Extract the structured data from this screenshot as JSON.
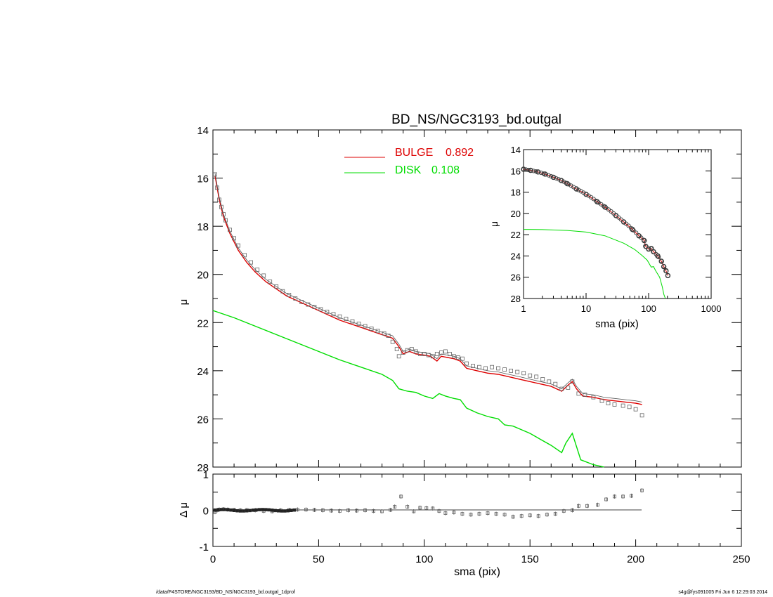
{
  "footer": {
    "path": "/data/P4STORE/NGC3193/BD_NS/NGC3193_bd.outgal_1dprof",
    "stamp": "s4g@fys091005  Fri Jun  6 12:29:03 2014"
  },
  "colors": {
    "bulge": "#dd0000",
    "disk": "#00dd00",
    "data": "#666666",
    "model": "#555555"
  },
  "chart_data": [
    {
      "id": "main",
      "type": "line",
      "title": "BD_NS/NGC3193_bd.outgal",
      "xlabel": "",
      "ylabel": "μ",
      "xlim": [
        0,
        250
      ],
      "ylim": [
        28,
        14
      ],
      "xticks": [
        0,
        50,
        100,
        150,
        200,
        250
      ],
      "yticks": [
        14,
        16,
        18,
        20,
        22,
        24,
        26,
        28
      ],
      "legend": [
        {
          "name": "BULGE",
          "value": "0.892",
          "color": "#dd0000"
        },
        {
          "name": "DISK",
          "value": "0.108",
          "color": "#00dd00"
        }
      ],
      "bulge": [
        [
          1,
          15.9
        ],
        [
          3,
          16.9
        ],
        [
          5,
          17.6
        ],
        [
          8,
          18.3
        ],
        [
          12,
          19.0
        ],
        [
          16,
          19.5
        ],
        [
          20,
          19.9
        ],
        [
          25,
          20.3
        ],
        [
          30,
          20.6
        ],
        [
          35,
          20.9
        ],
        [
          40,
          21.1
        ],
        [
          45,
          21.3
        ],
        [
          50,
          21.5
        ],
        [
          55,
          21.7
        ],
        [
          60,
          21.9
        ],
        [
          65,
          22.05
        ],
        [
          70,
          22.2
        ],
        [
          75,
          22.35
        ],
        [
          80,
          22.5
        ],
        [
          85,
          22.65
        ],
        [
          88,
          23.0
        ],
        [
          90,
          23.3
        ],
        [
          93,
          23.2
        ],
        [
          96,
          23.3
        ],
        [
          100,
          23.35
        ],
        [
          103,
          23.4
        ],
        [
          106,
          23.6
        ],
        [
          108,
          23.4
        ],
        [
          111,
          23.45
        ],
        [
          114,
          23.5
        ],
        [
          117,
          23.6
        ],
        [
          120,
          23.9
        ],
        [
          125,
          24.0
        ],
        [
          130,
          24.1
        ],
        [
          135,
          24.15
        ],
        [
          140,
          24.25
        ],
        [
          145,
          24.35
        ],
        [
          150,
          24.45
        ],
        [
          155,
          24.55
        ],
        [
          160,
          24.65
        ],
        [
          165,
          24.85
        ],
        [
          168,
          24.6
        ],
        [
          170,
          24.45
        ],
        [
          172,
          24.75
        ],
        [
          175,
          25.05
        ],
        [
          180,
          25.1
        ],
        [
          185,
          25.2
        ],
        [
          190,
          25.25
        ],
        [
          195,
          25.3
        ],
        [
          200,
          25.35
        ],
        [
          203,
          25.4
        ]
      ],
      "disk": [
        [
          0,
          21.5
        ],
        [
          10,
          21.8
        ],
        [
          20,
          22.15
        ],
        [
          30,
          22.5
        ],
        [
          40,
          22.85
        ],
        [
          50,
          23.2
        ],
        [
          60,
          23.55
        ],
        [
          70,
          23.85
        ],
        [
          80,
          24.15
        ],
        [
          85,
          24.4
        ],
        [
          88,
          24.75
        ],
        [
          92,
          24.85
        ],
        [
          96,
          24.9
        ],
        [
          100,
          25.05
        ],
        [
          104,
          25.15
        ],
        [
          107,
          24.95
        ],
        [
          110,
          25.05
        ],
        [
          114,
          25.15
        ],
        [
          117,
          25.2
        ],
        [
          120,
          25.55
        ],
        [
          125,
          25.75
        ],
        [
          130,
          25.9
        ],
        [
          135,
          26.0
        ],
        [
          138,
          26.25
        ],
        [
          142,
          26.3
        ],
        [
          146,
          26.45
        ],
        [
          150,
          26.6
        ],
        [
          155,
          26.85
        ],
        [
          160,
          27.1
        ],
        [
          165,
          27.4
        ],
        [
          167,
          27.0
        ],
        [
          170,
          26.6
        ],
        [
          174,
          27.7
        ],
        [
          180,
          27.9
        ],
        [
          185,
          28.0
        ]
      ],
      "data_points": [
        [
          1,
          15.85
        ],
        [
          2,
          16.4
        ],
        [
          3,
          16.9
        ],
        [
          4,
          17.2
        ],
        [
          5,
          17.5
        ],
        [
          6,
          17.75
        ],
        [
          8,
          18.15
        ],
        [
          10,
          18.5
        ],
        [
          12,
          18.8
        ],
        [
          15,
          19.2
        ],
        [
          18,
          19.5
        ],
        [
          21,
          19.8
        ],
        [
          24,
          20.05
        ],
        [
          27,
          20.3
        ],
        [
          30,
          20.5
        ],
        [
          33,
          20.7
        ],
        [
          36,
          20.85
        ],
        [
          39,
          21.0
        ],
        [
          42,
          21.15
        ],
        [
          45,
          21.25
        ],
        [
          48,
          21.35
        ],
        [
          51,
          21.45
        ],
        [
          54,
          21.55
        ],
        [
          57,
          21.65
        ],
        [
          60,
          21.75
        ],
        [
          63,
          21.85
        ],
        [
          66,
          21.95
        ],
        [
          69,
          22.05
        ],
        [
          72,
          22.15
        ],
        [
          75,
          22.25
        ],
        [
          78,
          22.35
        ],
        [
          81,
          22.45
        ],
        [
          83,
          22.55
        ],
        [
          85,
          22.8
        ],
        [
          87,
          23.1
        ],
        [
          88,
          23.4
        ],
        [
          90,
          23.25
        ],
        [
          92,
          23.15
        ],
        [
          94,
          23.1
        ],
        [
          96,
          23.2
        ],
        [
          98,
          23.3
        ],
        [
          100,
          23.3
        ],
        [
          102,
          23.35
        ],
        [
          104,
          23.4
        ],
        [
          106,
          23.3
        ],
        [
          108,
          23.25
        ],
        [
          110,
          23.2
        ],
        [
          112,
          23.3
        ],
        [
          114,
          23.4
        ],
        [
          116,
          23.45
        ],
        [
          118,
          23.5
        ],
        [
          120,
          23.7
        ],
        [
          123,
          23.8
        ],
        [
          126,
          23.85
        ],
        [
          129,
          23.9
        ],
        [
          132,
          23.85
        ],
        [
          135,
          23.9
        ],
        [
          138,
          23.95
        ],
        [
          141,
          24.0
        ],
        [
          144,
          24.05
        ],
        [
          147,
          24.1
        ],
        [
          150,
          24.2
        ],
        [
          153,
          24.25
        ],
        [
          156,
          24.35
        ],
        [
          159,
          24.45
        ],
        [
          162,
          24.55
        ],
        [
          165,
          24.75
        ],
        [
          168,
          24.7
        ],
        [
          170,
          24.45
        ],
        [
          173,
          24.95
        ],
        [
          176,
          25.0
        ],
        [
          180,
          25.1
        ],
        [
          184,
          25.25
        ],
        [
          187,
          25.35
        ],
        [
          190,
          25.4
        ],
        [
          194,
          25.45
        ],
        [
          197,
          25.5
        ],
        [
          200,
          25.6
        ],
        [
          203,
          25.85
        ]
      ]
    },
    {
      "id": "inset",
      "type": "line",
      "xscale": "log",
      "xlabel": "sma (pix)",
      "ylabel": "μ",
      "xlim": [
        1,
        1000
      ],
      "ylim": [
        28,
        14
      ],
      "xticks": [
        1,
        10,
        100,
        1000
      ],
      "yticks": [
        14,
        16,
        18,
        20,
        22,
        24,
        26,
        28
      ],
      "data_points": [
        [
          1,
          15.85
        ],
        [
          1.3,
          15.95
        ],
        [
          1.7,
          16.1
        ],
        [
          2.2,
          16.3
        ],
        [
          3,
          16.6
        ],
        [
          4,
          16.9
        ],
        [
          5,
          17.2
        ],
        [
          7,
          17.7
        ],
        [
          10,
          18.2
        ],
        [
          15,
          18.9
        ],
        [
          20,
          19.4
        ],
        [
          30,
          20.2
        ],
        [
          40,
          20.8
        ],
        [
          55,
          21.5
        ],
        [
          70,
          22.1
        ],
        [
          85,
          22.55
        ],
        [
          90,
          23.1
        ],
        [
          100,
          23.35
        ],
        [
          110,
          23.3
        ],
        [
          120,
          23.6
        ],
        [
          140,
          24.0
        ],
        [
          160,
          24.5
        ],
        [
          175,
          25.0
        ],
        [
          190,
          25.4
        ],
        [
          203,
          25.85
        ]
      ],
      "disk": [
        [
          1,
          21.5
        ],
        [
          2,
          21.52
        ],
        [
          5,
          21.6
        ],
        [
          10,
          21.75
        ],
        [
          20,
          22.1
        ],
        [
          40,
          22.8
        ],
        [
          60,
          23.4
        ],
        [
          80,
          24.0
        ],
        [
          95,
          24.4
        ],
        [
          110,
          25.05
        ],
        [
          120,
          25.0
        ],
        [
          130,
          25.4
        ],
        [
          150,
          26.0
        ],
        [
          165,
          26.9
        ],
        [
          175,
          27.6
        ],
        [
          185,
          28.0
        ]
      ]
    },
    {
      "id": "residual",
      "type": "scatter",
      "xlabel": "sma (pix)",
      "ylabel": "Δ μ",
      "xlim": [
        0,
        250
      ],
      "ylim": [
        -1,
        1
      ],
      "xticks": [
        0,
        50,
        100,
        150,
        200,
        250
      ],
      "yticks": [
        -1,
        0,
        1
      ],
      "residuals": [
        [
          1,
          -0.05
        ],
        [
          2,
          0.0
        ],
        [
          3,
          0.02
        ],
        [
          5,
          0.03
        ],
        [
          7,
          0.02
        ],
        [
          10,
          0.01
        ],
        [
          13,
          0.0
        ],
        [
          16,
          0.01
        ],
        [
          20,
          0.0
        ],
        [
          24,
          -0.02
        ],
        [
          28,
          -0.03
        ],
        [
          32,
          0.0
        ],
        [
          36,
          0.01
        ],
        [
          40,
          0.02
        ],
        [
          44,
          0.02
        ],
        [
          48,
          0.01
        ],
        [
          52,
          0.0
        ],
        [
          56,
          -0.01
        ],
        [
          60,
          -0.02
        ],
        [
          64,
          0.0
        ],
        [
          68,
          -0.01
        ],
        [
          72,
          0.0
        ],
        [
          76,
          -0.02
        ],
        [
          80,
          -0.03
        ],
        [
          84,
          0.01
        ],
        [
          86,
          0.1
        ],
        [
          89,
          0.38
        ],
        [
          92,
          0.1
        ],
        [
          95,
          -0.03
        ],
        [
          98,
          0.07
        ],
        [
          101,
          0.06
        ],
        [
          104,
          0.05
        ],
        [
          107,
          -0.02
        ],
        [
          110,
          -0.08
        ],
        [
          114,
          -0.06
        ],
        [
          118,
          -0.1
        ],
        [
          122,
          -0.12
        ],
        [
          126,
          -0.1
        ],
        [
          130,
          -0.08
        ],
        [
          134,
          -0.1
        ],
        [
          138,
          -0.12
        ],
        [
          142,
          -0.18
        ],
        [
          146,
          -0.16
        ],
        [
          150,
          -0.14
        ],
        [
          154,
          -0.16
        ],
        [
          158,
          -0.12
        ],
        [
          162,
          -0.1
        ],
        [
          166,
          -0.02
        ],
        [
          170,
          0.0
        ],
        [
          173,
          0.12
        ],
        [
          177,
          0.12
        ],
        [
          182,
          0.15
        ],
        [
          186,
          0.3
        ],
        [
          190,
          0.38
        ],
        [
          194,
          0.38
        ],
        [
          198,
          0.4
        ],
        [
          203,
          0.55
        ]
      ]
    }
  ]
}
